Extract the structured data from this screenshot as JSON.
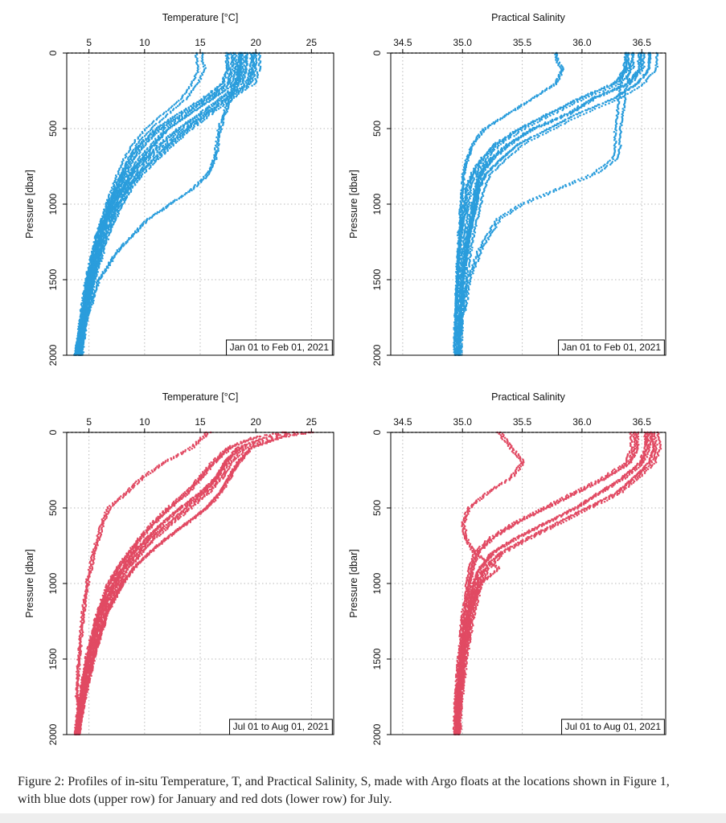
{
  "colors": {
    "january": "#2a9ddc",
    "july": "#e14a63"
  },
  "chart_data": [
    {
      "type": "scatter",
      "name": "temperature-january",
      "color": "#2a9ddc",
      "title": "Temperature [°C]",
      "xlabel": "Temperature [°C]",
      "ylabel": "Pressure [dbar]",
      "xlim": [
        3,
        27
      ],
      "ylim": [
        2000,
        0
      ],
      "xticks": [
        5,
        10,
        15,
        20,
        25
      ],
      "yticks": [
        0,
        500,
        1000,
        1500,
        2000
      ],
      "annotation": "Jan 01 to Feb 01, 2021",
      "series": [
        {
          "name": "profiles-main-a",
          "p": [
            0,
            100,
            200,
            300,
            400,
            500,
            600,
            700,
            800,
            900,
            1000,
            1200,
            1500,
            1800,
            2000
          ],
          "x": [
            18.4,
            18.4,
            18.0,
            16.0,
            14.0,
            12.0,
            10.8,
            9.6,
            8.6,
            7.8,
            7.0,
            6.0,
            5.0,
            4.4,
            4.0
          ]
        },
        {
          "name": "profiles-main-b",
          "p": [
            0,
            100,
            200,
            300,
            400,
            500,
            600,
            700,
            800,
            900,
            1000,
            1200,
            1500,
            1800,
            2000
          ],
          "x": [
            19.2,
            19.2,
            18.8,
            17.0,
            15.2,
            13.2,
            11.6,
            10.2,
            9.0,
            8.2,
            7.4,
            6.2,
            5.2,
            4.5,
            4.2
          ]
        },
        {
          "name": "profiles-main-c",
          "p": [
            0,
            100,
            200,
            300,
            400,
            500,
            600,
            700,
            800,
            900,
            1000,
            1200,
            1500,
            1800,
            2000
          ],
          "x": [
            17.6,
            17.6,
            17.2,
            15.4,
            13.2,
            11.2,
            9.8,
            8.8,
            8.0,
            7.4,
            6.8,
            5.8,
            4.8,
            4.2,
            3.8
          ]
        },
        {
          "name": "profiles-main-d",
          "p": [
            0,
            100,
            200,
            300,
            400,
            500,
            600,
            700,
            800,
            900,
            1000,
            1200,
            1500,
            1800,
            2000
          ],
          "x": [
            20.0,
            20.0,
            19.6,
            17.6,
            15.8,
            14.0,
            12.4,
            11.0,
            9.6,
            8.6,
            7.8,
            6.6,
            5.4,
            4.6,
            4.3
          ]
        },
        {
          "name": "profiles-cool-shallow",
          "p": [
            0,
            50,
            100,
            200,
            300,
            400,
            500,
            600,
            700,
            800,
            1000,
            1200,
            1500,
            2000
          ],
          "x": [
            15.0,
            15.0,
            15.2,
            14.6,
            13.6,
            12.0,
            10.4,
            9.2,
            8.4,
            7.8,
            6.8,
            5.9,
            5.0,
            3.9
          ]
        },
        {
          "name": "profiles-warm-deep",
          "p": [
            0,
            200,
            400,
            500,
            600,
            700,
            800,
            900,
            1000,
            1100,
            1300,
            1500,
            1800,
            2000
          ],
          "x": [
            18.4,
            18.2,
            17.0,
            16.6,
            16.4,
            16.2,
            15.6,
            14.2,
            12.2,
            10.2,
            7.6,
            5.8,
            4.6,
            4.1
          ]
        }
      ]
    },
    {
      "type": "scatter",
      "name": "salinity-january",
      "color": "#2a9ddc",
      "title": "Practical Salinity",
      "xlabel": "Practical Salinity",
      "ylabel": "Pressure [dbar]",
      "xlim": [
        34.4,
        36.7
      ],
      "ylim": [
        2000,
        0
      ],
      "xticks": [
        34.5,
        35.0,
        35.5,
        36.0,
        36.5
      ],
      "xticklabels": [
        "34.5",
        "35.0",
        "35.5",
        "36.0",
        "36.5"
      ],
      "yticks": [
        0,
        500,
        1000,
        1500,
        2000
      ],
      "annotation": "Jan 01 to Feb 01, 2021",
      "series": [
        {
          "name": "profiles-main-a",
          "p": [
            0,
            100,
            200,
            300,
            400,
            500,
            600,
            700,
            800,
            900,
            1000,
            1200,
            1500,
            1800,
            2000
          ],
          "x": [
            36.5,
            36.5,
            36.4,
            36.1,
            35.9,
            35.6,
            35.4,
            35.25,
            35.15,
            35.12,
            35.1,
            35.05,
            35.0,
            34.98,
            34.97
          ]
        },
        {
          "name": "profiles-main-b",
          "p": [
            0,
            100,
            200,
            300,
            400,
            500,
            600,
            700,
            800,
            900,
            1000,
            1200,
            1500,
            1800,
            2000
          ],
          "x": [
            36.6,
            36.6,
            36.5,
            36.3,
            36.0,
            35.75,
            35.5,
            35.35,
            35.22,
            35.16,
            35.14,
            35.08,
            35.02,
            34.99,
            34.98
          ]
        },
        {
          "name": "profiles-main-c",
          "p": [
            0,
            100,
            200,
            300,
            400,
            500,
            600,
            700,
            800,
            900,
            1000,
            1200,
            1500,
            1800,
            2000
          ],
          "x": [
            36.4,
            36.4,
            36.3,
            36.0,
            35.75,
            35.5,
            35.3,
            35.18,
            35.1,
            35.05,
            35.04,
            35.0,
            34.97,
            34.95,
            34.94
          ]
        },
        {
          "name": "profiles-fresh-shallow",
          "p": [
            0,
            50,
            100,
            200,
            300,
            400,
            500,
            600,
            700,
            800,
            1000,
            1200,
            1500,
            2000
          ],
          "x": [
            35.8,
            35.8,
            35.85,
            35.8,
            35.6,
            35.4,
            35.2,
            35.1,
            35.05,
            35.02,
            35.0,
            34.98,
            34.96,
            34.94
          ]
        },
        {
          "name": "profiles-salty-deep",
          "p": [
            0,
            200,
            400,
            500,
            600,
            700,
            800,
            900,
            1000,
            1100,
            1300,
            1500,
            1800,
            2000
          ],
          "x": [
            36.4,
            36.35,
            36.32,
            36.3,
            36.3,
            36.28,
            36.1,
            35.8,
            35.5,
            35.3,
            35.15,
            35.05,
            35.0,
            34.98
          ]
        }
      ]
    },
    {
      "type": "scatter",
      "name": "temperature-july",
      "color": "#e14a63",
      "title": "Temperature [°C]",
      "xlabel": "Temperature [°C]",
      "ylabel": "Pressure [dbar]",
      "xlim": [
        3,
        27
      ],
      "ylim": [
        2000,
        0
      ],
      "xticks": [
        5,
        10,
        15,
        20,
        25
      ],
      "yticks": [
        0,
        500,
        1000,
        1500,
        2000
      ],
      "annotation": "Jul 01 to Aug 01, 2021",
      "series": [
        {
          "name": "profiles-main-a",
          "p": [
            0,
            30,
            100,
            200,
            300,
            400,
            500,
            600,
            700,
            800,
            900,
            1000,
            1200,
            1500,
            1800,
            2000
          ],
          "x": [
            24.5,
            22.0,
            19.0,
            17.6,
            16.8,
            15.6,
            14.0,
            12.4,
            10.8,
            9.6,
            8.4,
            7.6,
            6.4,
            5.2,
            4.4,
            4.0
          ]
        },
        {
          "name": "profiles-main-b",
          "p": [
            0,
            30,
            100,
            200,
            300,
            400,
            500,
            600,
            700,
            800,
            900,
            1000,
            1200,
            1500,
            1800,
            2000
          ],
          "x": [
            23.5,
            21.0,
            18.4,
            17.2,
            16.4,
            15.0,
            13.2,
            11.6,
            10.2,
            9.0,
            8.0,
            7.2,
            6.0,
            4.9,
            4.2,
            3.8
          ]
        },
        {
          "name": "profiles-main-c",
          "p": [
            0,
            30,
            100,
            200,
            300,
            400,
            500,
            600,
            700,
            800,
            900,
            1000,
            1200,
            1500,
            1800,
            2000
          ],
          "x": [
            25.0,
            22.5,
            19.6,
            18.4,
            17.6,
            16.8,
            15.6,
            13.8,
            12.0,
            10.4,
            9.0,
            8.0,
            6.6,
            5.4,
            4.5,
            4.1
          ]
        },
        {
          "name": "profiles-main-d",
          "p": [
            0,
            30,
            100,
            200,
            300,
            400,
            500,
            600,
            700,
            800,
            900,
            1000,
            1200,
            1500,
            1800,
            2000
          ],
          "x": [
            22.5,
            20.0,
            17.6,
            16.2,
            15.0,
            13.8,
            12.2,
            10.8,
            9.6,
            8.6,
            7.6,
            6.8,
            5.8,
            4.8,
            4.1,
            3.8
          ]
        },
        {
          "name": "profiles-cool-shallow",
          "p": [
            0,
            100,
            200,
            300,
            400,
            450,
            500,
            600,
            700,
            800,
            1000,
            1200,
            1500,
            2000
          ],
          "x": [
            16.0,
            14.5,
            12.0,
            10.0,
            8.6,
            7.8,
            7.0,
            6.4,
            6.0,
            5.6,
            5.0,
            4.6,
            4.2,
            3.8
          ]
        }
      ]
    },
    {
      "type": "scatter",
      "name": "salinity-july",
      "color": "#e14a63",
      "title": "Practical Salinity",
      "xlabel": "Practical Salinity",
      "ylabel": "Pressure [dbar]",
      "xlim": [
        34.4,
        36.7
      ],
      "ylim": [
        2000,
        0
      ],
      "xticks": [
        34.5,
        35.0,
        35.5,
        36.0,
        36.5
      ],
      "xticklabels": [
        "34.5",
        "35.0",
        "35.5",
        "36.0",
        "36.5"
      ],
      "yticks": [
        0,
        500,
        1000,
        1500,
        2000
      ],
      "annotation": "Jul 01 to Aug 01, 2021",
      "series": [
        {
          "name": "profiles-main-a",
          "p": [
            0,
            100,
            200,
            300,
            400,
            500,
            600,
            700,
            800,
            900,
            1000,
            1200,
            1500,
            1800,
            2000
          ],
          "x": [
            36.55,
            36.55,
            36.5,
            36.35,
            36.15,
            35.95,
            35.7,
            35.45,
            35.25,
            35.15,
            35.1,
            35.05,
            35.0,
            34.97,
            34.96
          ]
        },
        {
          "name": "profiles-main-b",
          "p": [
            0,
            100,
            200,
            300,
            400,
            500,
            600,
            700,
            800,
            900,
            1000,
            1200,
            1500,
            1800,
            2000
          ],
          "x": [
            36.6,
            36.62,
            36.58,
            36.45,
            36.3,
            36.05,
            35.8,
            35.55,
            35.32,
            35.2,
            35.14,
            35.08,
            35.02,
            34.98,
            34.97
          ]
        },
        {
          "name": "profiles-main-c",
          "p": [
            0,
            100,
            200,
            300,
            400,
            500,
            600,
            700,
            800,
            900,
            1000,
            1200,
            1500,
            1800,
            2000
          ],
          "x": [
            36.45,
            36.45,
            36.4,
            36.2,
            35.95,
            35.7,
            35.45,
            35.25,
            35.12,
            35.08,
            35.06,
            35.02,
            34.98,
            34.95,
            34.94
          ]
        },
        {
          "name": "profiles-fresh-scatter",
          "p": [
            0,
            100,
            200,
            300,
            400,
            500,
            600,
            700,
            800,
            900,
            1000,
            1200,
            1500,
            2000
          ],
          "x": [
            35.3,
            35.4,
            35.5,
            35.4,
            35.2,
            35.05,
            35.0,
            35.02,
            35.1,
            35.3,
            35.15,
            35.05,
            35.0,
            34.95
          ]
        }
      ]
    }
  ],
  "caption": "Figure 2: Profiles of in-situ Temperature, T, and Practical Salinity, S, made with Argo floats at the locations shown in Figure 1, with blue dots (upper row) for January and red dots (lower row) for July."
}
